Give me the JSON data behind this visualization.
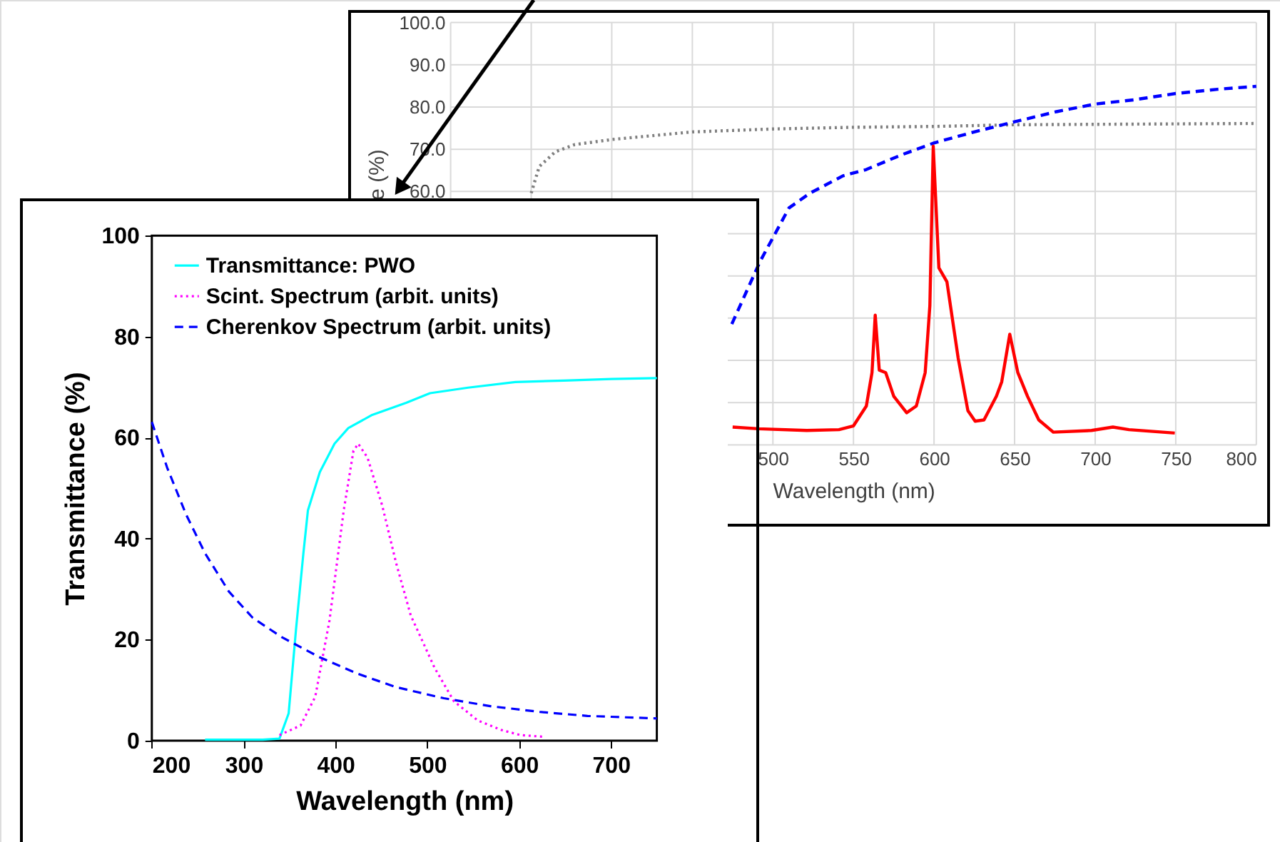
{
  "chart_data": [
    {
      "type": "line",
      "xlabel": "Wavelength (nm)",
      "ylabel": "e (%)",
      "xlim": [
        300,
        800
      ],
      "ylim": [
        0,
        100
      ],
      "xticks": [
        {
          "value": 300,
          "label": null
        },
        {
          "value": 350,
          "label": null
        },
        {
          "value": 400,
          "label": null
        },
        {
          "value": 450,
          "label": null
        },
        500,
        550,
        600,
        650,
        700,
        750,
        800
      ],
      "yticks": [
        {
          "value": 0,
          "label": null
        },
        {
          "value": 10,
          "label": null
        },
        {
          "value": 20,
          "label": null
        },
        {
          "value": 30,
          "label": null
        },
        {
          "value": 40,
          "label": null
        },
        {
          "value": 50,
          "label": null
        },
        {
          "value": 60,
          "label": "60.0"
        },
        {
          "value": 70,
          "label": "70.0"
        },
        {
          "value": 80,
          "label": "80.0"
        },
        {
          "value": 90,
          "label": "90.0"
        },
        {
          "value": 100,
          "label": "100.0"
        }
      ],
      "grid": true,
      "series": [
        {
          "color": "#808080",
          "line_style": "dotted",
          "x": [
            350,
            355,
            365,
            377,
            400,
            450,
            500,
            550,
            600,
            650,
            700,
            800
          ],
          "values": [
            59.6,
            65.9,
            69.4,
            71.1,
            72.3,
            74.1,
            74.8,
            75.2,
            75.4,
            75.8,
            75.9,
            76.1
          ]
        },
        {
          "color": "#0000ff",
          "line_style": "dashed",
          "x": [
            474.5,
            492,
            510,
            523,
            543.5,
            558,
            580,
            600,
            625,
            650,
            676,
            700,
            724,
            750,
            776,
            800
          ],
          "values": [
            28.6,
            43.4,
            56.1,
            59.6,
            63.7,
            65.2,
            68.7,
            71.5,
            74.1,
            76.5,
            78.9,
            80.7,
            81.7,
            83.2,
            84.2,
            84.9
          ]
        },
        {
          "color": "#ff0000",
          "line_style": "solid",
          "x": [
            475,
            491,
            521,
            541,
            550,
            558,
            561.5,
            563.5,
            566,
            570,
            575,
            583,
            589,
            594.5,
            597.4,
            599.5,
            603,
            608,
            615,
            621,
            625.5,
            631,
            638.7,
            642,
            647,
            652,
            658,
            665,
            674,
            697.7,
            711,
            721,
            749.4
          ],
          "values": [
            4.2,
            3.8,
            3.4,
            3.6,
            4.5,
            9.2,
            17.1,
            30.7,
            17.7,
            17.1,
            11.5,
            7.6,
            9.2,
            17.1,
            32.9,
            70.7,
            41.9,
            38.6,
            20.5,
            8.1,
            5.6,
            5.9,
            11.5,
            14.9,
            26.2,
            17.1,
            11.5,
            5.9,
            3.0,
            3.4,
            4.2,
            3.6,
            2.8
          ]
        }
      ]
    },
    {
      "type": "line",
      "xlabel": "Wavelength (nm)",
      "ylabel": "Transmittance (%)",
      "xlim": [
        200,
        750
      ],
      "ylim": [
        0,
        100
      ],
      "xticks": [
        200,
        300,
        400,
        500,
        600,
        700
      ],
      "yticks": [
        0,
        20,
        40,
        60,
        80,
        100
      ],
      "legend": "top left",
      "series": [
        {
          "name": "Transmittance: PWO",
          "color": "#00ffff",
          "line_style": "solid",
          "x": [
            258,
            320.7,
            339,
            349,
            357,
            365,
            370,
            383,
            399,
            414,
            440,
            477,
            503,
            544.5,
            596,
            648.5,
            700.5,
            750
          ],
          "values": [
            0.2,
            0.2,
            0.4,
            5.4,
            22,
            37,
            45.6,
            53.2,
            58.8,
            61.9,
            64.5,
            66.9,
            68.8,
            69.9,
            71,
            71.3,
            71.6,
            71.8
          ]
        },
        {
          "name": "Scint. Spectrum (arbit. units)",
          "color": "#ff00ff",
          "line_style": "dotted",
          "x": [
            339,
            362,
            378,
            393.5,
            409,
            419.6,
            424.8,
            435,
            451,
            466,
            482,
            508,
            529,
            555,
            581,
            601.7,
            625
          ],
          "values": [
            1.1,
            3.0,
            8.7,
            23.8,
            45.6,
            57.4,
            58.8,
            56,
            46.5,
            35.2,
            24.8,
            14.4,
            7.8,
            4.0,
            2.1,
            1.1,
            0.8
          ]
        },
        {
          "name": "Cherenkov Spectrum (arbit. units)",
          "color": "#0000ff",
          "line_style": "dashed",
          "x": [
            200,
            216.6,
            237.5,
            258,
            284,
            310,
            341.5,
            383,
            425,
            466,
            518,
            570,
            622.5,
            674.5,
            750
          ],
          "values": [
            63.1,
            54.1,
            44.7,
            37.1,
            29.5,
            24.3,
            20.5,
            16.5,
            13.2,
            10.6,
            8.4,
            6.8,
            5.7,
            4.9,
            4.4
          ]
        }
      ]
    }
  ]
}
